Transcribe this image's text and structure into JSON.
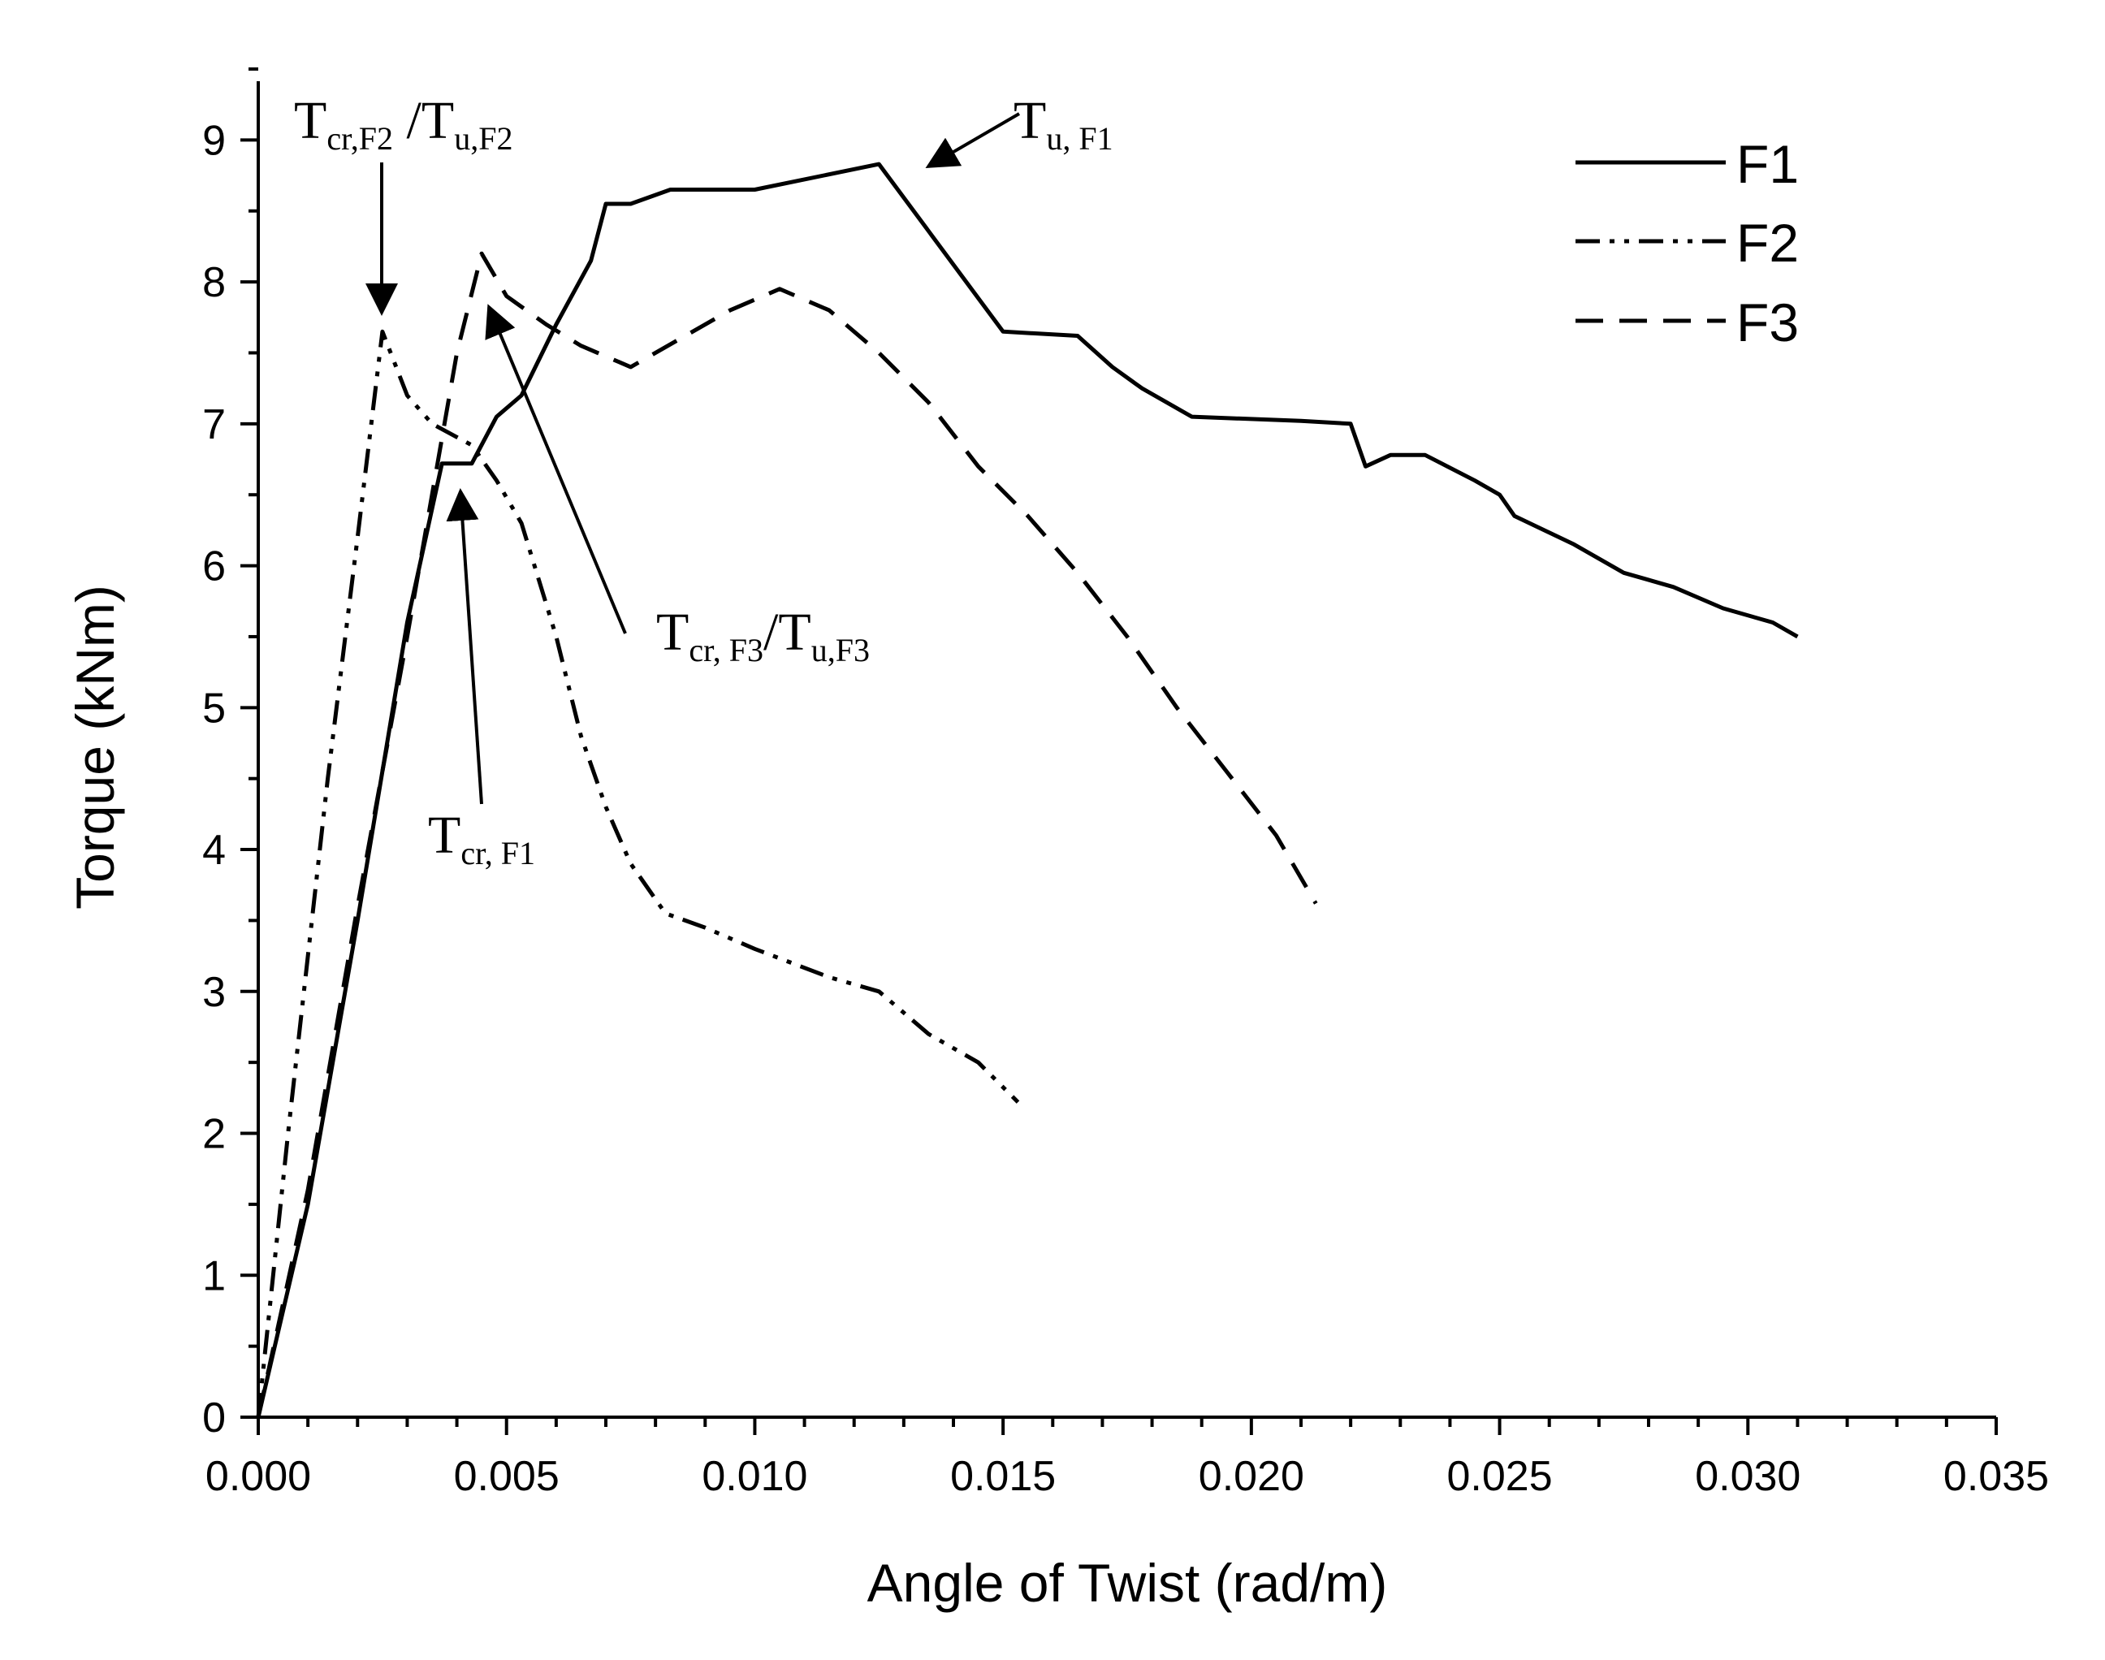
{
  "chart_data": {
    "type": "line",
    "title": "",
    "xlabel": "Angle of Twist (rad/m)",
    "ylabel": "Torque (kNm)",
    "xlim": [
      0,
      0.035
    ],
    "ylim": [
      0,
      9.5
    ],
    "x_ticks": [
      "0.000",
      "0.005",
      "0.010",
      "0.015",
      "0.020",
      "0.025",
      "0.030",
      "0.035"
    ],
    "y_ticks": [
      "0",
      "1",
      "2",
      "3",
      "4",
      "5",
      "6",
      "7",
      "8",
      "9"
    ],
    "grid": false,
    "legend_position": "top-right",
    "series": [
      {
        "name": "F1",
        "style": "solid",
        "points": [
          [
            0,
            0
          ],
          [
            0.001,
            1.5
          ],
          [
            0.002,
            3.5
          ],
          [
            0.003,
            5.6
          ],
          [
            0.0037,
            6.72
          ],
          [
            0.0043,
            6.72
          ],
          [
            0.0048,
            7.05
          ],
          [
            0.0053,
            7.2
          ],
          [
            0.006,
            7.7
          ],
          [
            0.0067,
            8.15
          ],
          [
            0.007,
            8.55
          ],
          [
            0.0075,
            8.55
          ],
          [
            0.0083,
            8.65
          ],
          [
            0.01,
            8.65
          ],
          [
            0.0125,
            8.83
          ],
          [
            0.015,
            7.65
          ],
          [
            0.0165,
            7.62
          ],
          [
            0.0172,
            7.4
          ],
          [
            0.0178,
            7.25
          ],
          [
            0.0188,
            7.05
          ],
          [
            0.021,
            7.02
          ],
          [
            0.022,
            7.0
          ],
          [
            0.0223,
            6.7
          ],
          [
            0.0228,
            6.78
          ],
          [
            0.0235,
            6.78
          ],
          [
            0.0245,
            6.6
          ],
          [
            0.025,
            6.5
          ],
          [
            0.0253,
            6.35
          ],
          [
            0.0265,
            6.15
          ],
          [
            0.0275,
            5.95
          ],
          [
            0.0285,
            5.85
          ],
          [
            0.0295,
            5.7
          ],
          [
            0.0305,
            5.6
          ],
          [
            0.031,
            5.5
          ]
        ]
      },
      {
        "name": "F2",
        "style": "dash-dot-dot",
        "points": [
          [
            0,
            0
          ],
          [
            0.0006,
            2
          ],
          [
            0.0014,
            4.5
          ],
          [
            0.002,
            6.2
          ],
          [
            0.0025,
            7.65
          ],
          [
            0.003,
            7.2
          ],
          [
            0.0035,
            7.0
          ],
          [
            0.0043,
            6.85
          ],
          [
            0.0048,
            6.6
          ],
          [
            0.0053,
            6.3
          ],
          [
            0.006,
            5.5
          ],
          [
            0.0065,
            4.8
          ],
          [
            0.007,
            4.3
          ],
          [
            0.0075,
            3.9
          ],
          [
            0.0082,
            3.55
          ],
          [
            0.009,
            3.45
          ],
          [
            0.01,
            3.3
          ],
          [
            0.0115,
            3.1
          ],
          [
            0.0125,
            3.0
          ],
          [
            0.0135,
            2.7
          ],
          [
            0.0145,
            2.5
          ],
          [
            0.0153,
            2.22
          ]
        ]
      },
      {
        "name": "F3",
        "style": "dashed",
        "points": [
          [
            0,
            0
          ],
          [
            0.001,
            1.6
          ],
          [
            0.002,
            3.6
          ],
          [
            0.003,
            5.5
          ],
          [
            0.0035,
            6.5
          ],
          [
            0.004,
            7.5
          ],
          [
            0.0045,
            8.2
          ],
          [
            0.005,
            7.9
          ],
          [
            0.0058,
            7.7
          ],
          [
            0.0065,
            7.55
          ],
          [
            0.0075,
            7.4
          ],
          [
            0.0085,
            7.6
          ],
          [
            0.0095,
            7.8
          ],
          [
            0.0105,
            7.95
          ],
          [
            0.0115,
            7.8
          ],
          [
            0.0125,
            7.5
          ],
          [
            0.0135,
            7.15
          ],
          [
            0.0145,
            6.7
          ],
          [
            0.0155,
            6.35
          ],
          [
            0.0165,
            5.95
          ],
          [
            0.0175,
            5.5
          ],
          [
            0.0185,
            5.0
          ],
          [
            0.0195,
            4.55
          ],
          [
            0.0205,
            4.1
          ],
          [
            0.0213,
            3.62
          ]
        ]
      }
    ],
    "annotations": [
      {
        "id": "tcr-f2",
        "base": "T",
        "sub": "cr,F2",
        "mid": " /T",
        "sub2": "u,F2"
      },
      {
        "id": "tu-f1",
        "base": "T",
        "sub": "u, F1"
      },
      {
        "id": "tcr-f3",
        "base": "T",
        "sub": "cr, F3",
        "mid": "/T",
        "sub2": "u,F3"
      },
      {
        "id": "tcr-f1",
        "base": "T",
        "sub": "cr, F1"
      }
    ]
  }
}
